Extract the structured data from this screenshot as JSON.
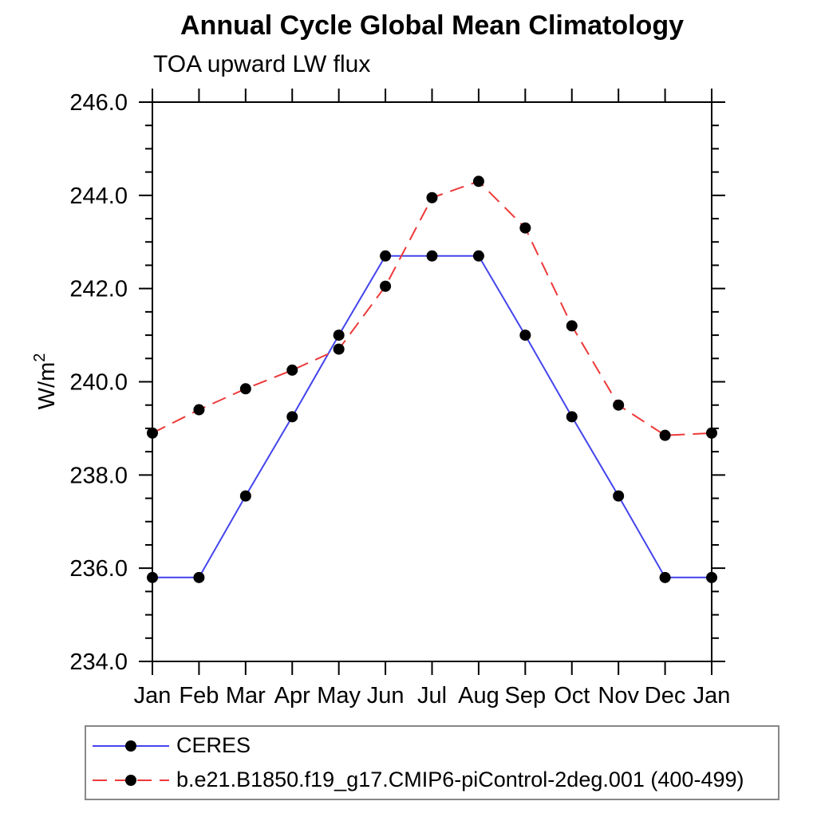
{
  "chart_data": {
    "type": "line",
    "title": "Annual Cycle Global Mean Climatology",
    "subtitle": "TOA upward LW flux",
    "ylabel_base": "W/m",
    "ylabel_sup": "2",
    "x_categories": [
      "Jan",
      "Feb",
      "Mar",
      "Apr",
      "May",
      "Jun",
      "Jul",
      "Aug",
      "Sep",
      "Oct",
      "Nov",
      "Dec",
      "Jan"
    ],
    "y_axis": {
      "min": 234.0,
      "max": 246.0,
      "major_step": 2.0,
      "minor_step": 0.5,
      "major_ticks": [
        {
          "value": 234.0,
          "label": "234.0"
        },
        {
          "value": 236.0,
          "label": "236.0"
        },
        {
          "value": 238.0,
          "label": "238.0"
        },
        {
          "value": 240.0,
          "label": "240.0"
        },
        {
          "value": 242.0,
          "label": "242.0"
        },
        {
          "value": 244.0,
          "label": "244.0"
        },
        {
          "value": 246.0,
          "label": "246.0"
        }
      ]
    },
    "grid": false,
    "legend_position": "bottom-left",
    "marker": "filled-circle",
    "marker_color": "#000000",
    "axis_color": "#000000",
    "series": [
      {
        "name": "CERES",
        "color": "#4444ee",
        "line_style": "solid",
        "values": [
          235.8,
          235.8,
          237.55,
          239.25,
          241.0,
          242.7,
          242.7,
          242.7,
          241.0,
          239.25,
          237.55,
          235.8,
          235.8
        ]
      },
      {
        "name": "b.e21.B1850.f19_g17.CMIP6-piControl-2deg.001 (400-499)",
        "color": "#ee3939",
        "line_style": "dashed",
        "values": [
          238.9,
          239.4,
          239.85,
          240.25,
          240.7,
          242.05,
          243.95,
          244.3,
          243.3,
          241.2,
          239.5,
          238.85,
          238.9
        ]
      }
    ]
  }
}
